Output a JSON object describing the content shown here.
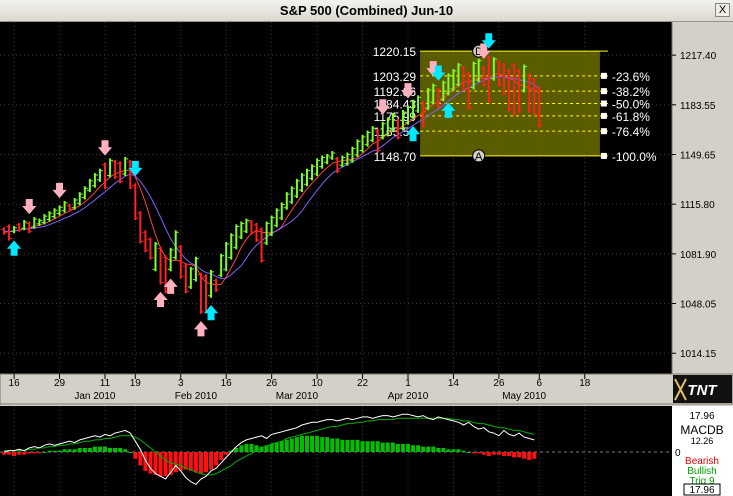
{
  "window": {
    "title": "S&P 500 (Combined) Jun-10",
    "close_label": "X"
  },
  "chart_data": {
    "type": "ohlc",
    "price_axis": {
      "min": 1000,
      "max": 1240,
      "ticks": [
        1217.4,
        1183.55,
        1149.65,
        1115.8,
        1081.9,
        1048.05,
        1014.15
      ],
      "tick_labels": [
        "1217.40",
        "1183.55",
        "1149.65",
        "1115.80",
        "1081.90",
        "1048.05",
        "1014.15"
      ]
    },
    "date_axis": {
      "day_ticks": [
        {
          "i": 2,
          "label": "16"
        },
        {
          "i": 11,
          "label": "29"
        },
        {
          "i": 20,
          "label": "11"
        },
        {
          "i": 26,
          "label": "19"
        },
        {
          "i": 35,
          "label": "3"
        },
        {
          "i": 44,
          "label": "16"
        },
        {
          "i": 53,
          "label": "26"
        },
        {
          "i": 62,
          "label": "10"
        },
        {
          "i": 71,
          "label": "22"
        },
        {
          "i": 80,
          "label": "1"
        },
        {
          "i": 89,
          "label": "14"
        },
        {
          "i": 98,
          "label": "26"
        },
        {
          "i": 106,
          "label": "6"
        },
        {
          "i": 115,
          "label": "18"
        }
      ],
      "month_labels": [
        {
          "i": 18,
          "label": "Jan 2010"
        },
        {
          "i": 38,
          "label": "Feb 2010"
        },
        {
          "i": 58,
          "label": "Mar 2010"
        },
        {
          "i": 80,
          "label": "Apr 2010"
        },
        {
          "i": 103,
          "label": "May 2010"
        }
      ]
    },
    "bars": [
      [
        1100,
        1095,
        "r"
      ],
      [
        1102,
        1091,
        "r"
      ],
      [
        1101,
        1096,
        "g"
      ],
      [
        1103,
        1097,
        "r"
      ],
      [
        1105,
        1098,
        "g"
      ],
      [
        1104,
        1096,
        "r"
      ],
      [
        1107,
        1099,
        "g"
      ],
      [
        1106,
        1101,
        "g"
      ],
      [
        1109,
        1102,
        "g"
      ],
      [
        1111,
        1104,
        "g"
      ],
      [
        1113,
        1106,
        "g"
      ],
      [
        1115,
        1108,
        "g"
      ],
      [
        1118,
        1110,
        "g"
      ],
      [
        1116,
        1111,
        "r"
      ],
      [
        1120,
        1112,
        "g"
      ],
      [
        1124,
        1115,
        "g"
      ],
      [
        1128,
        1119,
        "g"
      ],
      [
        1133,
        1124,
        "g"
      ],
      [
        1137,
        1127,
        "g"
      ],
      [
        1140,
        1131,
        "g"
      ],
      [
        1144,
        1126,
        "r"
      ],
      [
        1147,
        1134,
        "g"
      ],
      [
        1146,
        1133,
        "r"
      ],
      [
        1145,
        1130,
        "r"
      ],
      [
        1148,
        1135,
        "g"
      ],
      [
        1146,
        1126,
        "r"
      ],
      [
        1130,
        1105,
        "r"
      ],
      [
        1111,
        1089,
        "r"
      ],
      [
        1098,
        1083,
        "r"
      ],
      [
        1093,
        1078,
        "r"
      ],
      [
        1090,
        1070,
        "g"
      ],
      [
        1087,
        1061,
        "r"
      ],
      [
        1081,
        1055,
        "r"
      ],
      [
        1086,
        1070,
        "g"
      ],
      [
        1098,
        1078,
        "g"
      ],
      [
        1088,
        1065,
        "r"
      ],
      [
        1075,
        1055,
        "r"
      ],
      [
        1073,
        1058,
        "g"
      ],
      [
        1080,
        1063,
        "g"
      ],
      [
        1069,
        1041,
        "r"
      ],
      [
        1068,
        1042,
        "r"
      ],
      [
        1071,
        1052,
        "g"
      ],
      [
        1065,
        1056,
        "r"
      ],
      [
        1082,
        1066,
        "g"
      ],
      [
        1090,
        1070,
        "g"
      ],
      [
        1096,
        1078,
        "g"
      ],
      [
        1102,
        1085,
        "g"
      ],
      [
        1104,
        1092,
        "g"
      ],
      [
        1106,
        1096,
        "g"
      ],
      [
        1105,
        1095,
        "r"
      ],
      [
        1103,
        1090,
        "r"
      ],
      [
        1100,
        1076,
        "r"
      ],
      [
        1104,
        1088,
        "g"
      ],
      [
        1108,
        1094,
        "g"
      ],
      [
        1113,
        1100,
        "g"
      ],
      [
        1117,
        1105,
        "g"
      ],
      [
        1124,
        1112,
        "g"
      ],
      [
        1128,
        1116,
        "g"
      ],
      [
        1133,
        1120,
        "g"
      ],
      [
        1137,
        1124,
        "g"
      ],
      [
        1140,
        1128,
        "g"
      ],
      [
        1143,
        1132,
        "g"
      ],
      [
        1147,
        1135,
        "g"
      ],
      [
        1149,
        1140,
        "g"
      ],
      [
        1150,
        1143,
        "g"
      ],
      [
        1152,
        1146,
        "g"
      ],
      [
        1148,
        1137,
        "r"
      ],
      [
        1149,
        1141,
        "g"
      ],
      [
        1151,
        1142,
        "g"
      ],
      [
        1155,
        1144,
        "g"
      ],
      [
        1160,
        1148,
        "g"
      ],
      [
        1163,
        1151,
        "g"
      ],
      [
        1166,
        1155,
        "g"
      ],
      [
        1169,
        1158,
        "g"
      ],
      [
        1167,
        1151,
        "r"
      ],
      [
        1172,
        1160,
        "g"
      ],
      [
        1175,
        1162,
        "g"
      ],
      [
        1178,
        1165,
        "g"
      ],
      [
        1174,
        1160,
        "r"
      ],
      [
        1180,
        1166,
        "g"
      ],
      [
        1183,
        1170,
        "g"
      ],
      [
        1187,
        1174,
        "g"
      ],
      [
        1190,
        1178,
        "g"
      ],
      [
        1186,
        1168,
        "r"
      ],
      [
        1195,
        1180,
        "g"
      ],
      [
        1198,
        1184,
        "g"
      ],
      [
        1195,
        1181,
        "r"
      ],
      [
        1200,
        1186,
        "g"
      ],
      [
        1205,
        1190,
        "g"
      ],
      [
        1208,
        1193,
        "g"
      ],
      [
        1212,
        1196,
        "g"
      ],
      [
        1210,
        1193,
        "r"
      ],
      [
        1206,
        1180,
        "r"
      ],
      [
        1213,
        1194,
        "g"
      ],
      [
        1215,
        1199,
        "g"
      ],
      [
        1210,
        1196,
        "r"
      ],
      [
        1217,
        1185,
        "r"
      ],
      [
        1216,
        1200,
        "g"
      ],
      [
        1214,
        1196,
        "r"
      ],
      [
        1212,
        1190,
        "r"
      ],
      [
        1208,
        1179,
        "r"
      ],
      [
        1212,
        1176,
        "r"
      ],
      [
        1208,
        1178,
        "r"
      ],
      [
        1211,
        1192,
        "g"
      ],
      [
        1205,
        1178,
        "r"
      ],
      [
        1202,
        1176,
        "r"
      ],
      [
        1196,
        1168,
        "r"
      ]
    ],
    "fibonacci": {
      "levels": [
        {
          "price": 1220.15,
          "label": "1220.15",
          "ratio": ""
        },
        {
          "price": 1203.29,
          "label": "1203.29",
          "ratio": "-23.6%"
        },
        {
          "price": 1192.86,
          "label": "1192.86",
          "ratio": "-38.2%"
        },
        {
          "price": 1184.43,
          "label": "1184.43",
          "ratio": "-50.0%"
        },
        {
          "price": 1175.99,
          "label": "1175.99",
          "ratio": "-61.8%"
        },
        {
          "price": 1165.56,
          "label": "1165.56",
          "ratio": "-76.4%"
        },
        {
          "price": 1148.7,
          "label": "1148.70",
          "ratio": "-100.0%"
        }
      ],
      "point_b": "B",
      "point_a": "A",
      "zone_color": "#6b6b00"
    },
    "arrows": [
      {
        "i": 2,
        "dir": "up",
        "color": "cyan"
      },
      {
        "i": 5,
        "dir": "down",
        "color": "pink"
      },
      {
        "i": 11,
        "dir": "down",
        "color": "pink"
      },
      {
        "i": 20,
        "dir": "down",
        "color": "pink"
      },
      {
        "i": 26,
        "dir": "down",
        "color": "cyan"
      },
      {
        "i": 31,
        "dir": "up",
        "color": "pink"
      },
      {
        "i": 33,
        "dir": "up",
        "color": "pink"
      },
      {
        "i": 39,
        "dir": "up",
        "color": "pink"
      },
      {
        "i": 41,
        "dir": "up",
        "color": "cyan"
      },
      {
        "i": 75,
        "dir": "down",
        "color": "pink"
      },
      {
        "i": 80,
        "dir": "down",
        "color": "pink"
      },
      {
        "i": 81,
        "dir": "up",
        "color": "cyan"
      },
      {
        "i": 85,
        "dir": "down",
        "color": "pink"
      },
      {
        "i": 86,
        "dir": "down",
        "color": "cyan"
      },
      {
        "i": 88,
        "dir": "up",
        "color": "cyan"
      },
      {
        "i": 95,
        "dir": "down",
        "color": "pink"
      },
      {
        "i": 96,
        "dir": "down",
        "color": "cyan"
      }
    ],
    "indicator": {
      "name": "MACDB",
      "readout_top": "17.96",
      "readout_mid": "12.26",
      "readout_bottom": "17.96",
      "zero_label": "0",
      "legend": [
        {
          "label": "Bearish",
          "color": "#e00000"
        },
        {
          "label": "Bullish",
          "color": "#00a000"
        },
        {
          "label": "Trig 9",
          "color": "#00a000"
        }
      ],
      "histogram": [
        -2,
        -2,
        -3,
        -2,
        -2,
        -1,
        -1,
        -1,
        0,
        1,
        1,
        1,
        2,
        2,
        2,
        3,
        3,
        3,
        4,
        4,
        4,
        3,
        3,
        3,
        2,
        0,
        -5,
        -10,
        -14,
        -16,
        -17,
        -18,
        -18,
        -17,
        -15,
        -14,
        -13,
        -14,
        -15,
        -16,
        -15,
        -13,
        -10,
        -6,
        -2,
        1,
        3,
        5,
        6,
        6,
        5,
        4,
        5,
        6,
        7,
        8,
        9,
        10,
        11,
        12,
        12,
        12,
        12,
        11,
        11,
        10,
        10,
        9,
        9,
        9,
        9,
        8,
        8,
        8,
        8,
        7,
        7,
        7,
        6,
        6,
        6,
        5,
        5,
        4,
        4,
        4,
        3,
        3,
        2,
        2,
        2,
        1,
        0,
        -1,
        -1,
        -2,
        -3,
        -2,
        -2,
        -3,
        -3,
        -4,
        -4,
        -5,
        -6,
        -5
      ],
      "macd": [
        0,
        1,
        1,
        2,
        1,
        3,
        4,
        3,
        5,
        6,
        5,
        6,
        7,
        8,
        7,
        9,
        10,
        11,
        12,
        11,
        13,
        12,
        14,
        15,
        16,
        14,
        8,
        2,
        -6,
        -12,
        -16,
        -18,
        -20,
        -15,
        -10,
        -14,
        -19,
        -22,
        -24,
        -20,
        -18,
        -14,
        -12,
        -8,
        -4,
        0,
        4,
        7,
        9,
        10,
        11,
        12,
        10,
        13,
        14,
        15,
        16,
        17,
        18,
        20,
        21,
        22,
        22,
        23,
        24,
        24,
        23,
        24,
        25,
        24,
        25,
        26,
        26,
        25,
        26,
        27,
        27,
        26,
        27,
        28,
        28,
        27,
        26,
        27,
        25,
        24,
        26,
        25,
        24,
        23,
        22,
        20,
        22,
        19,
        17,
        18,
        15,
        14,
        12,
        16,
        13,
        12,
        14,
        11,
        10,
        9
      ],
      "trigger": [
        1,
        1,
        1,
        1,
        1,
        2,
        2,
        3,
        3,
        4,
        4,
        5,
        5,
        6,
        6,
        7,
        8,
        8,
        9,
        9,
        10,
        10,
        11,
        12,
        12,
        12,
        11,
        9,
        6,
        3,
        0,
        -3,
        -6,
        -8,
        -9,
        -10,
        -12,
        -13,
        -15,
        -16,
        -17,
        -17,
        -16,
        -14,
        -12,
        -10,
        -7,
        -5,
        -3,
        -1,
        1,
        3,
        4,
        6,
        7,
        8,
        10,
        11,
        12,
        13,
        14,
        15,
        16,
        17,
        18,
        19,
        19,
        20,
        21,
        21,
        22,
        22,
        23,
        23,
        24,
        24,
        24,
        24,
        25,
        25,
        25,
        25,
        25,
        25,
        25,
        25,
        25,
        25,
        25,
        24,
        24,
        23,
        23,
        22,
        21,
        21,
        20,
        19,
        18,
        18,
        17,
        16,
        16,
        15,
        14,
        13
      ]
    }
  }
}
